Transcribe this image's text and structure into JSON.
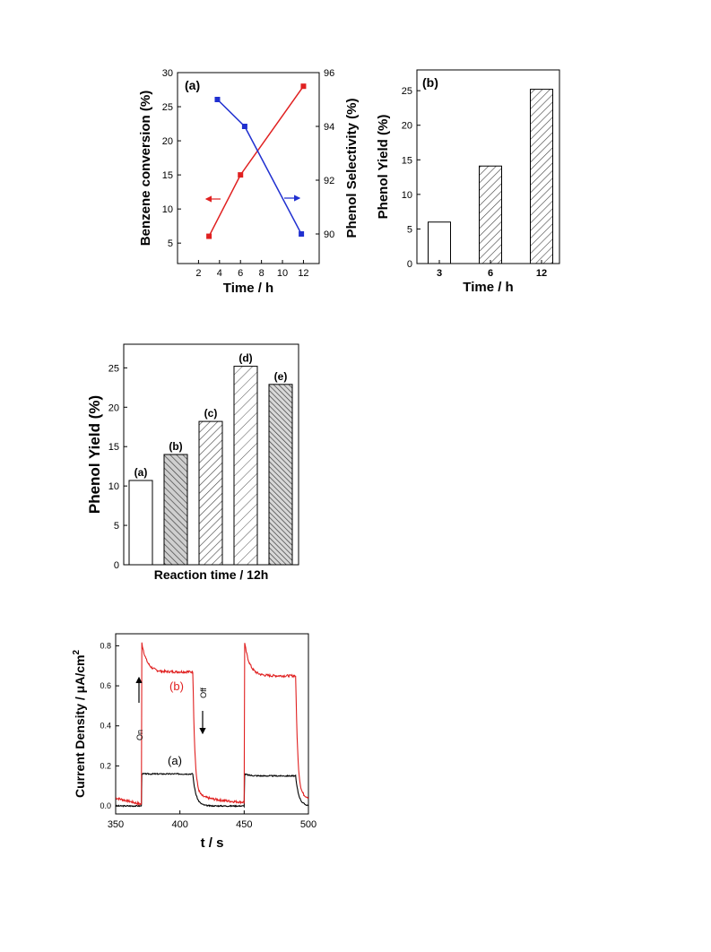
{
  "chart_data": [
    {
      "id": "fig1a",
      "type": "line",
      "panel_label": "(a)",
      "xlabel": "Time / h",
      "ylabel_left": "Benzene conversion (%)",
      "ylabel_right": "Phenol Selectivity (%)",
      "xlim": [
        0,
        13.5
      ],
      "ylim_left": [
        2,
        30
      ],
      "ylim_right": [
        88.9,
        96
      ],
      "xticks": [
        2,
        4,
        6,
        8,
        10,
        12
      ],
      "yticks_left": [
        5,
        10,
        15,
        20,
        25,
        30
      ],
      "yticks_right": [
        90,
        92,
        94,
        96
      ],
      "series": [
        {
          "axis": "left",
          "color": "#e02020",
          "x": [
            3,
            6,
            12
          ],
          "y": [
            6,
            15,
            28
          ]
        },
        {
          "axis": "right",
          "color": "#2030d0",
          "x": [
            3.8,
            6.4,
            11.8
          ],
          "y": [
            95.0,
            94.0,
            90.0
          ]
        }
      ]
    },
    {
      "id": "fig1b",
      "type": "bar",
      "panel_label": "(b)",
      "xlabel": "Time / h",
      "ylabel": "Phenol Yield (%)",
      "ylim": [
        0,
        28
      ],
      "yticks": [
        0,
        5,
        10,
        15,
        20,
        25
      ],
      "categories": [
        "3",
        "6",
        "12"
      ],
      "values": [
        6.0,
        14.1,
        25.2
      ],
      "patterns": [
        "none",
        "hatch",
        "hatch"
      ]
    },
    {
      "id": "fig2",
      "type": "bar",
      "xlabel": "Reaction time / 12h",
      "ylabel": "Phenol Yield (%)",
      "ylim": [
        0,
        28
      ],
      "yticks": [
        0,
        5,
        10,
        15,
        20,
        25
      ],
      "categories": [
        "(a)",
        "(b)",
        "(c)",
        "(d)",
        "(e)"
      ],
      "values": [
        10.7,
        14.0,
        18.2,
        25.2,
        22.9
      ],
      "patterns": [
        "none",
        "cross",
        "hatch",
        "hatch-wide",
        "cross-dense"
      ]
    },
    {
      "id": "fig3",
      "type": "line",
      "xlabel": "t / s",
      "ylabel": "Current Density / μA/cm",
      "ylabel_sup": "2",
      "xlim": [
        350,
        500
      ],
      "ylim": [
        -0.04,
        0.86
      ],
      "xticks": [
        350,
        400,
        450,
        500
      ],
      "yticks": [
        0.0,
        0.2,
        0.4,
        0.6,
        0.8
      ],
      "on_times": [
        370,
        450
      ],
      "off_times": [
        410,
        490
      ],
      "annotations": {
        "on": "On",
        "off": "Off"
      },
      "series": [
        {
          "label": "(a)",
          "color": "#000000",
          "baseline": 0.0,
          "plateau": 0.16,
          "peak": 0.16,
          "late_plateau": 0.15
        },
        {
          "label": "(b)",
          "color": "#e02020",
          "baseline": 0.04,
          "plateau": 0.67,
          "peak": 0.83,
          "late_plateau": 0.65
        }
      ]
    }
  ]
}
